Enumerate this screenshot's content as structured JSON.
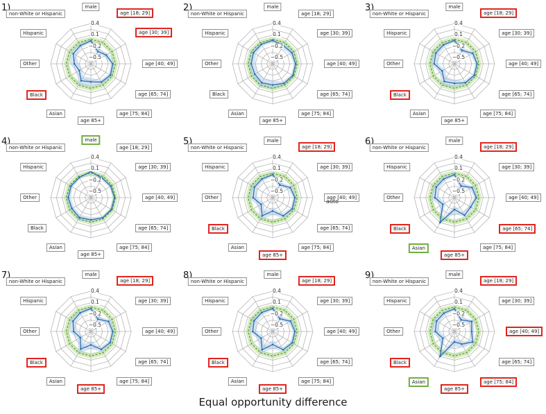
{
  "figure": {
    "caption": "Equal opportunity difference",
    "stray_text": "auto"
  },
  "chart_data": {
    "type": "radar",
    "axes": [
      "male",
      "age [18; 29]",
      "age [30; 39]",
      "age [40; 49]",
      "age [65; 74]",
      "age [75; 84]",
      "age 85+",
      "Asian",
      "Black",
      "Other",
      "Hispanic",
      "non-White or Hispanic"
    ],
    "tick_values": [
      0.4,
      0.1,
      -0.2,
      -0.5
    ],
    "tick_labels": [
      "0.4",
      "0.1",
      "−0.2",
      "−0.5"
    ],
    "grid_rings": [
      0.4,
      0.25,
      0.1,
      -0.05,
      -0.2,
      -0.35,
      -0.5
    ],
    "scale_min": -0.65,
    "scale_max": 0.4,
    "colors": {
      "blue_line": "#2e6fad",
      "blue_fill": "#a8c8e8",
      "green_line": "#4f9d2f",
      "green_fill": "#b7dc8f",
      "grid": "#b5b5b5",
      "box_border": "#8c8c8c",
      "highlight_red": "#e0231c",
      "highlight_green": "#6fae3f"
    },
    "charts": [
      {
        "number": "1)",
        "values": [
          -0.05,
          -0.28,
          -0.19,
          -0.08,
          -0.06,
          -0.1,
          -0.18,
          -0.14,
          -0.3,
          -0.22,
          -0.12,
          -0.1
        ],
        "ci": [
          0.05,
          0.07,
          0.07,
          0.05,
          0.05,
          0.06,
          0.1,
          0.13,
          0.08,
          0.12,
          0.08,
          0.06
        ],
        "green_center": -0.01,
        "green_lo": -0.08,
        "green_hi": 0.06,
        "highlights": {
          "age [18; 29]": "red",
          "age [30; 39]": "red",
          "Black": "red"
        }
      },
      {
        "number": "2)",
        "values": [
          -0.04,
          -0.1,
          -0.07,
          -0.05,
          -0.04,
          -0.06,
          -0.1,
          -0.08,
          -0.11,
          -0.09,
          -0.07,
          -0.06
        ],
        "ci": [
          0.05,
          0.08,
          0.07,
          0.05,
          0.05,
          0.06,
          0.11,
          0.13,
          0.08,
          0.1,
          0.08,
          0.06
        ],
        "green_center": -0.01,
        "green_lo": -0.08,
        "green_hi": 0.06,
        "highlights": {}
      },
      {
        "number": "3)",
        "values": [
          -0.04,
          -0.25,
          -0.1,
          -0.06,
          -0.05,
          -0.08,
          -0.14,
          -0.12,
          -0.28,
          -0.12,
          -0.09,
          -0.08
        ],
        "ci": [
          0.05,
          0.07,
          0.07,
          0.05,
          0.05,
          0.06,
          0.1,
          0.13,
          0.08,
          0.1,
          0.08,
          0.06
        ],
        "green_center": -0.01,
        "green_lo": -0.08,
        "green_hi": 0.06,
        "highlights": {
          "age [18; 29]": "red",
          "Black": "red"
        }
      },
      {
        "number": "4)",
        "values": [
          0.03,
          -0.06,
          -0.05,
          -0.03,
          -0.03,
          -0.04,
          -0.07,
          -0.05,
          -0.08,
          -0.06,
          -0.05,
          -0.04
        ],
        "ci": [
          0.03,
          0.05,
          0.05,
          0.04,
          0.04,
          0.04,
          0.07,
          0.08,
          0.06,
          0.07,
          0.05,
          0.04
        ],
        "green_center": -0.01,
        "green_lo": -0.08,
        "green_hi": 0.06,
        "highlights": {
          "male": "green"
        }
      },
      {
        "number": "5)",
        "values": [
          -0.05,
          -0.27,
          -0.12,
          -0.07,
          -0.06,
          -0.1,
          -0.3,
          -0.1,
          -0.3,
          -0.14,
          -0.1,
          -0.09
        ],
        "ci": [
          0.05,
          0.07,
          0.07,
          0.05,
          0.05,
          0.07,
          0.1,
          0.14,
          0.08,
          0.11,
          0.08,
          0.06
        ],
        "green_center": -0.01,
        "green_lo": -0.08,
        "green_hi": 0.06,
        "highlights": {
          "age [18; 29]": "red",
          "age 85+": "red",
          "Black": "red"
        }
      },
      {
        "number": "6)",
        "values": [
          -0.05,
          -0.3,
          -0.12,
          -0.08,
          -0.16,
          -0.12,
          -0.34,
          0.1,
          -0.3,
          -0.14,
          -0.1,
          -0.09
        ],
        "ci": [
          0.05,
          0.07,
          0.07,
          0.05,
          0.06,
          0.07,
          0.11,
          0.08,
          0.08,
          0.11,
          0.08,
          0.06
        ],
        "green_center": -0.01,
        "green_lo": -0.08,
        "green_hi": 0.06,
        "highlights": {
          "age [18; 29]": "red",
          "age [65; 74]": "red",
          "age 85+": "red",
          "Asian": "green",
          "Black": "red"
        }
      },
      {
        "number": "7)",
        "values": [
          -0.05,
          -0.28,
          -0.12,
          -0.08,
          -0.07,
          -0.11,
          -0.3,
          -0.12,
          -0.33,
          -0.2,
          -0.11,
          -0.09
        ],
        "ci": [
          0.05,
          0.07,
          0.07,
          0.05,
          0.05,
          0.07,
          0.11,
          0.13,
          0.08,
          0.11,
          0.08,
          0.06
        ],
        "green_center": -0.01,
        "green_lo": -0.08,
        "green_hi": 0.06,
        "highlights": {
          "age [18; 29]": "red",
          "age 85+": "red",
          "Black": "red"
        }
      },
      {
        "number": "8)",
        "values": [
          -0.05,
          -0.27,
          -0.11,
          -0.07,
          -0.06,
          -0.1,
          -0.31,
          -0.1,
          -0.3,
          -0.13,
          -0.09,
          -0.08
        ],
        "ci": [
          0.05,
          0.07,
          0.07,
          0.05,
          0.05,
          0.07,
          0.11,
          0.13,
          0.08,
          0.1,
          0.08,
          0.06
        ],
        "green_center": -0.01,
        "green_lo": -0.08,
        "green_hi": 0.06,
        "highlights": {
          "age [18; 29]": "red",
          "age 85+": "red",
          "Black": "red"
        }
      },
      {
        "number": "9)",
        "values": [
          -0.06,
          -0.3,
          -0.13,
          -0.2,
          -0.1,
          -0.27,
          -0.38,
          0.1,
          -0.3,
          -0.15,
          -0.11,
          -0.1
        ],
        "ci": [
          0.05,
          0.07,
          0.07,
          0.06,
          0.05,
          0.1,
          0.12,
          0.09,
          0.08,
          0.11,
          0.08,
          0.06
        ],
        "green_center": -0.01,
        "green_lo": -0.08,
        "green_hi": 0.06,
        "highlights": {
          "age [18; 29]": "red",
          "age [40; 49]": "red",
          "age [75; 84]": "red",
          "age 85+": "red",
          "Asian": "green",
          "Black": "red"
        }
      }
    ]
  }
}
